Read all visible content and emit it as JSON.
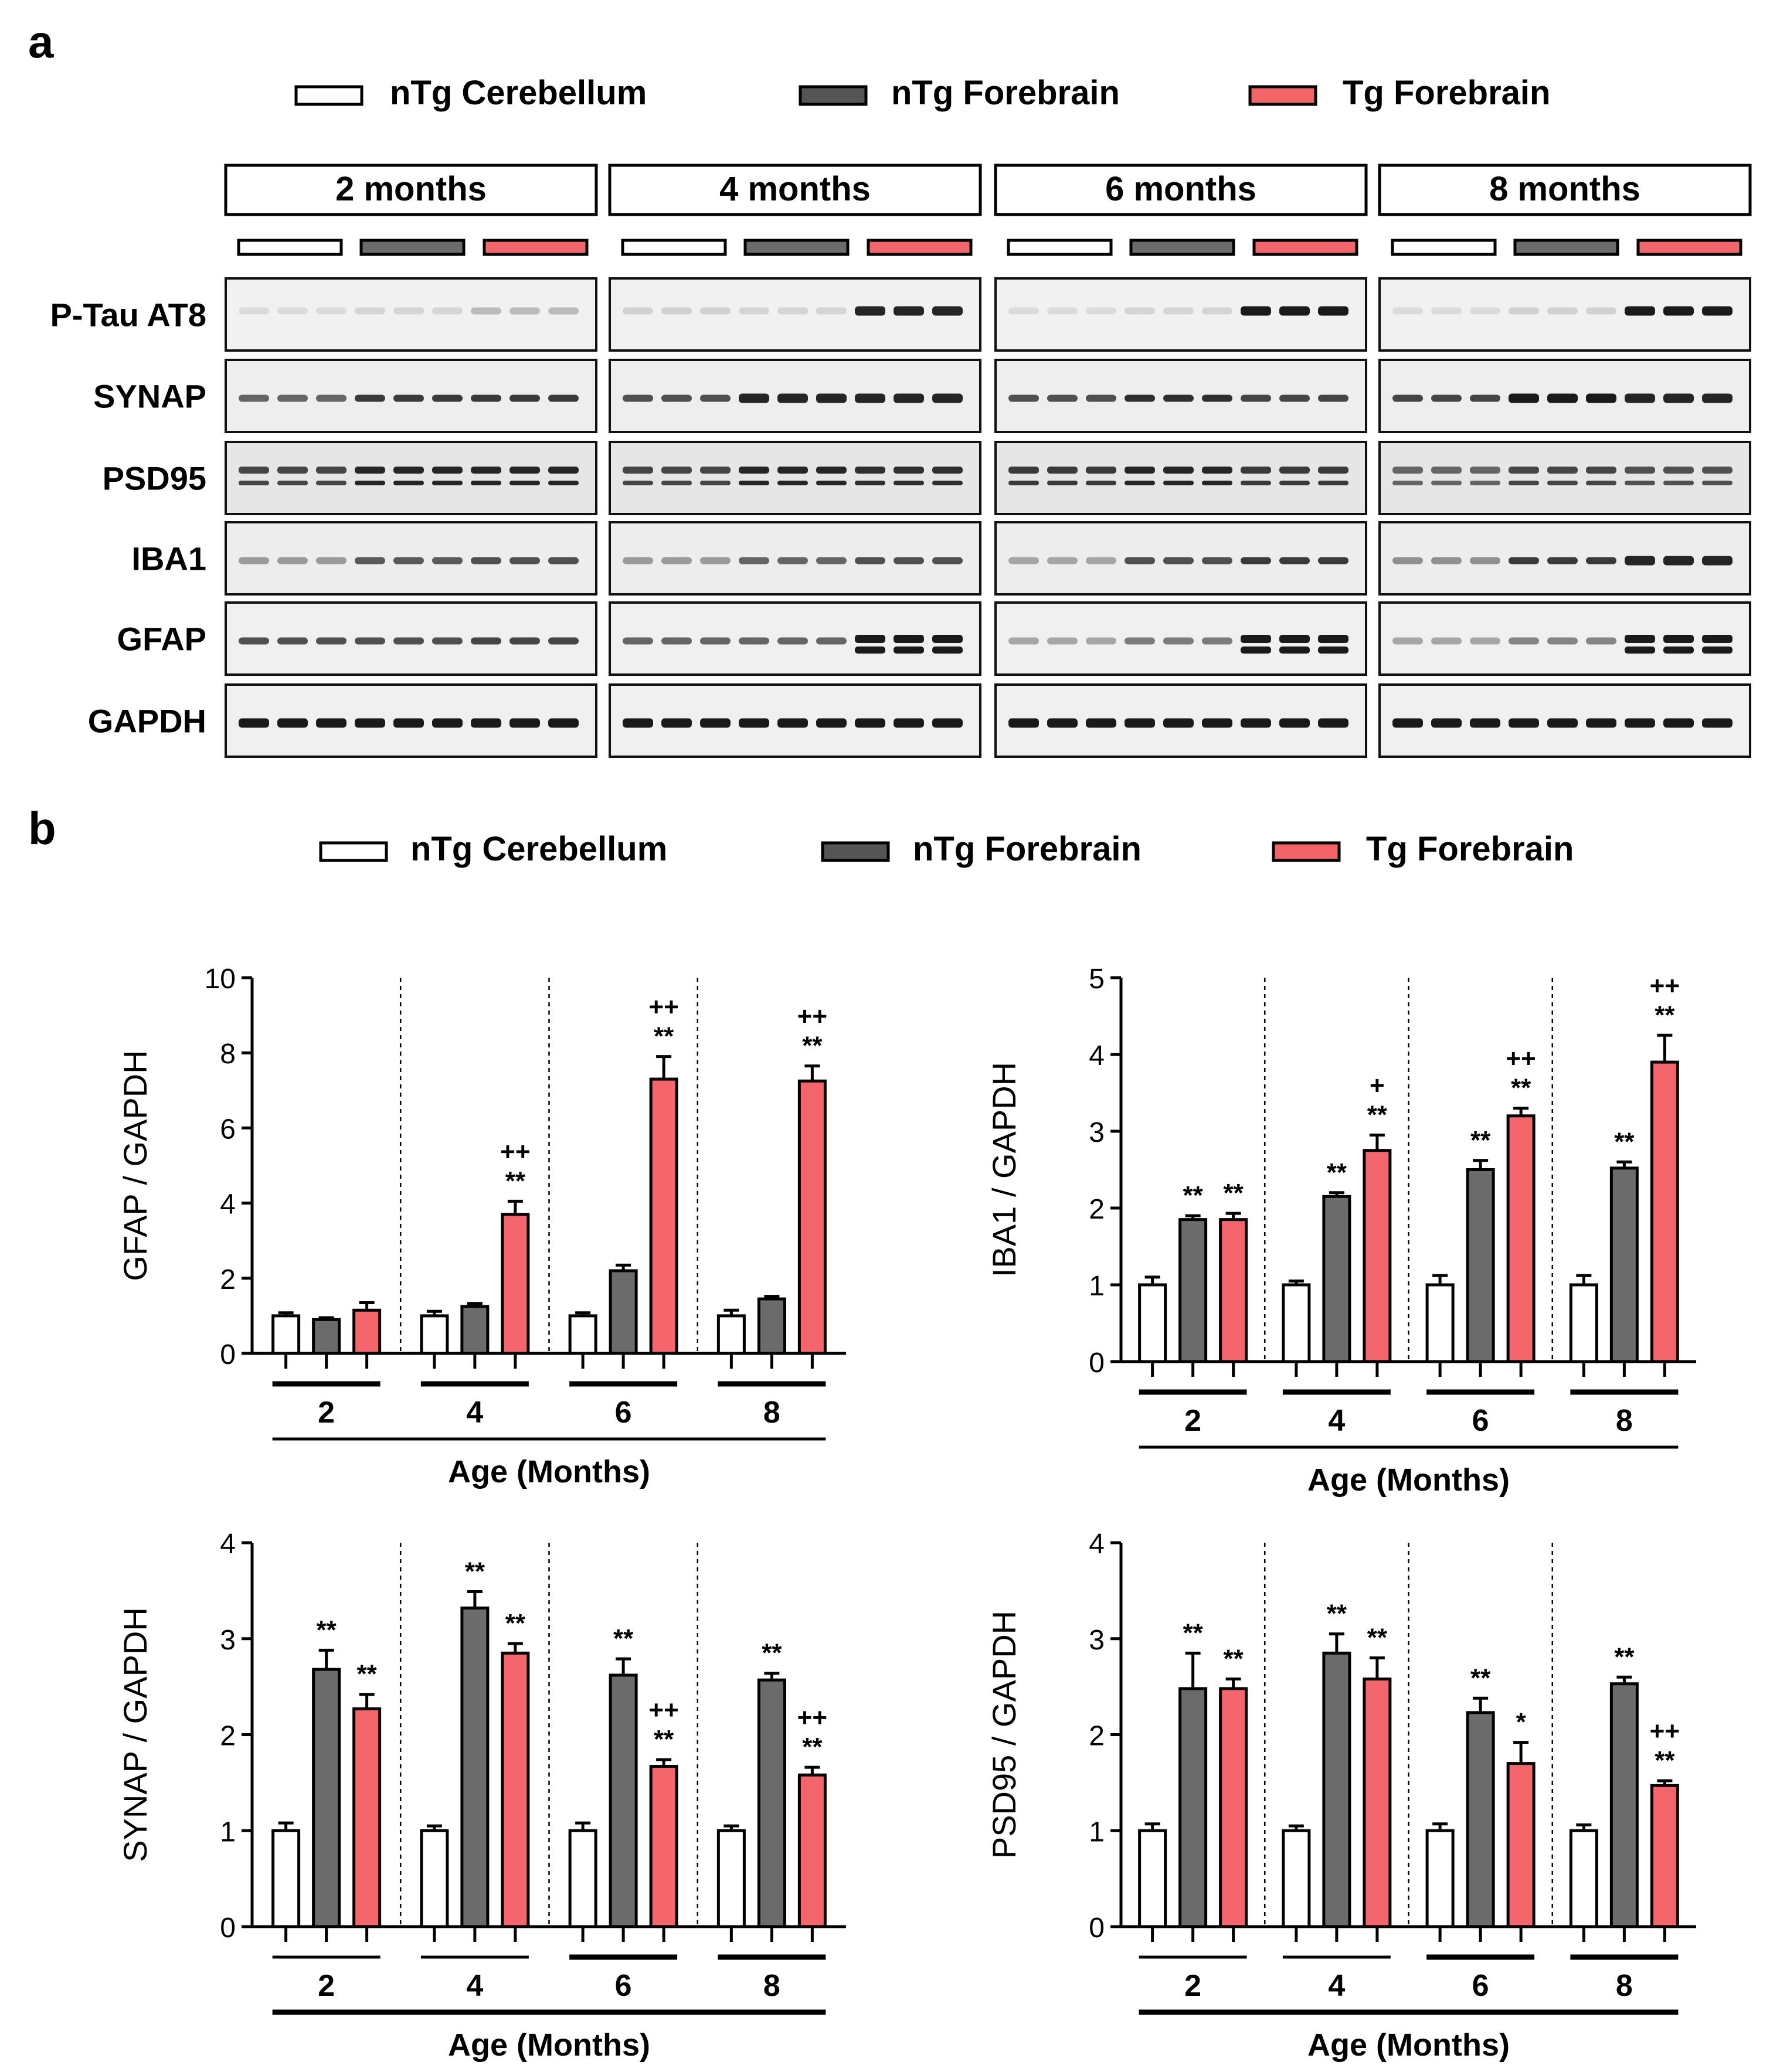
{
  "panel_a": {
    "letter": "a",
    "legend": [
      "nTg Cerebellum",
      "nTg Forebrain",
      "Tg Forebrain"
    ],
    "timepoints": [
      "2 months",
      "4 months",
      "6 months",
      "8 months"
    ],
    "proteins": [
      "P-Tau AT8",
      "SYNAP",
      "PSD95",
      "IBA1",
      "GFAP",
      "GAPDH"
    ]
  },
  "panel_b": {
    "letter": "b",
    "legend": [
      "nTg Cerebellum",
      "nTg Forebrain",
      "Tg Forebrain"
    ]
  },
  "colors": {
    "ntg_cerebellum": "#ffffff",
    "ntg_forebrain": "#6b6b6b",
    "tg_forebrain": "#f4666b",
    "legend_ntg_forebrain": "#555555",
    "legend_tg_forebrain": "#f26468"
  },
  "chart_data": [
    {
      "type": "bar",
      "id": "gfap",
      "ylabel": "GFAP / GAPDH",
      "xlabel": "Age (Months)",
      "categories": [
        "2",
        "4",
        "6",
        "8"
      ],
      "ylim": [
        0,
        10
      ],
      "yticks": [
        0,
        2,
        4,
        6,
        8,
        10
      ],
      "series": [
        {
          "name": "nTg Cerebellum",
          "values": [
            1.0,
            1.0,
            1.0,
            1.0
          ],
          "errors": [
            0.08,
            0.12,
            0.08,
            0.15
          ]
        },
        {
          "name": "nTg Forebrain",
          "values": [
            0.9,
            1.25,
            2.2,
            1.45
          ],
          "errors": [
            0.05,
            0.08,
            0.15,
            0.07
          ]
        },
        {
          "name": "Tg Forebrain",
          "values": [
            1.15,
            3.7,
            7.3,
            7.25
          ],
          "errors": [
            0.2,
            0.35,
            0.6,
            0.4
          ]
        }
      ],
      "annotations": [
        {
          "category": "4",
          "series": "Tg Forebrain",
          "lines": [
            "++",
            "**"
          ]
        },
        {
          "category": "6",
          "series": "Tg Forebrain",
          "lines": [
            "++",
            "**"
          ]
        },
        {
          "category": "8",
          "series": "Tg Forebrain",
          "lines": [
            "++",
            "**"
          ]
        }
      ]
    },
    {
      "type": "bar",
      "id": "iba1",
      "ylabel": "IBA1 / GAPDH",
      "xlabel": "Age (Months)",
      "categories": [
        "2",
        "4",
        "6",
        "8"
      ],
      "ylim": [
        0,
        5
      ],
      "yticks": [
        0,
        1,
        2,
        3,
        4,
        5
      ],
      "series": [
        {
          "name": "nTg Cerebellum",
          "values": [
            1.0,
            1.0,
            1.0,
            1.0
          ],
          "errors": [
            0.1,
            0.05,
            0.12,
            0.12
          ]
        },
        {
          "name": "nTg Forebrain",
          "values": [
            1.85,
            2.15,
            2.5,
            2.52
          ],
          "errors": [
            0.05,
            0.05,
            0.12,
            0.08
          ]
        },
        {
          "name": "Tg Forebrain",
          "values": [
            1.85,
            2.75,
            3.2,
            3.9
          ],
          "errors": [
            0.08,
            0.2,
            0.1,
            0.35
          ]
        }
      ],
      "annotations": [
        {
          "category": "2",
          "series": "nTg Forebrain",
          "lines": [
            "**"
          ]
        },
        {
          "category": "2",
          "series": "Tg Forebrain",
          "lines": [
            "**"
          ]
        },
        {
          "category": "4",
          "series": "nTg Forebrain",
          "lines": [
            "**"
          ]
        },
        {
          "category": "4",
          "series": "Tg Forebrain",
          "lines": [
            "+",
            "**"
          ]
        },
        {
          "category": "6",
          "series": "nTg Forebrain",
          "lines": [
            "**"
          ]
        },
        {
          "category": "6",
          "series": "Tg Forebrain",
          "lines": [
            "++",
            "**"
          ]
        },
        {
          "category": "8",
          "series": "nTg Forebrain",
          "lines": [
            "**"
          ]
        },
        {
          "category": "8",
          "series": "Tg Forebrain",
          "lines": [
            "++",
            "**"
          ]
        }
      ]
    },
    {
      "type": "bar",
      "id": "synap",
      "ylabel": "SYNAP / GAPDH",
      "xlabel": "Age (Months)",
      "categories": [
        "2",
        "4",
        "6",
        "8"
      ],
      "ylim": [
        0,
        4
      ],
      "yticks": [
        0,
        1,
        2,
        3,
        4
      ],
      "series": [
        {
          "name": "nTg Cerebellum",
          "values": [
            1.0,
            1.0,
            1.0,
            1.0
          ],
          "errors": [
            0.08,
            0.05,
            0.08,
            0.05
          ]
        },
        {
          "name": "nTg Forebrain",
          "values": [
            2.68,
            3.32,
            2.62,
            2.57
          ],
          "errors": [
            0.2,
            0.17,
            0.17,
            0.07
          ]
        },
        {
          "name": "Tg Forebrain",
          "values": [
            2.27,
            2.85,
            1.67,
            1.58
          ],
          "errors": [
            0.15,
            0.1,
            0.07,
            0.08
          ]
        }
      ],
      "annotations": [
        {
          "category": "2",
          "series": "nTg Forebrain",
          "lines": [
            "**"
          ]
        },
        {
          "category": "2",
          "series": "Tg Forebrain",
          "lines": [
            "**"
          ]
        },
        {
          "category": "4",
          "series": "nTg Forebrain",
          "lines": [
            "**"
          ]
        },
        {
          "category": "4",
          "series": "Tg Forebrain",
          "lines": [
            "**"
          ]
        },
        {
          "category": "6",
          "series": "nTg Forebrain",
          "lines": [
            "**"
          ]
        },
        {
          "category": "6",
          "series": "Tg Forebrain",
          "lines": [
            "++",
            "**"
          ]
        },
        {
          "category": "8",
          "series": "nTg Forebrain",
          "lines": [
            "**"
          ]
        },
        {
          "category": "8",
          "series": "Tg Forebrain",
          "lines": [
            "++",
            "**"
          ]
        }
      ]
    },
    {
      "type": "bar",
      "id": "psd95",
      "ylabel": "PSD95 / GAPDH",
      "xlabel": "Age (Months)",
      "categories": [
        "2",
        "4",
        "6",
        "8"
      ],
      "ylim": [
        0,
        4
      ],
      "yticks": [
        0,
        1,
        2,
        3,
        4
      ],
      "series": [
        {
          "name": "nTg Cerebellum",
          "values": [
            1.0,
            1.0,
            1.0,
            1.0
          ],
          "errors": [
            0.07,
            0.05,
            0.07,
            0.06
          ]
        },
        {
          "name": "nTg Forebrain",
          "values": [
            2.48,
            2.85,
            2.23,
            2.53
          ],
          "errors": [
            0.37,
            0.2,
            0.15,
            0.07
          ]
        },
        {
          "name": "Tg Forebrain",
          "values": [
            2.48,
            2.58,
            1.7,
            1.47
          ],
          "errors": [
            0.1,
            0.22,
            0.22,
            0.05
          ]
        }
      ],
      "annotations": [
        {
          "category": "2",
          "series": "nTg Forebrain",
          "lines": [
            "**"
          ]
        },
        {
          "category": "2",
          "series": "Tg Forebrain",
          "lines": [
            "**"
          ]
        },
        {
          "category": "4",
          "series": "nTg Forebrain",
          "lines": [
            "**"
          ]
        },
        {
          "category": "4",
          "series": "Tg Forebrain",
          "lines": [
            "**"
          ]
        },
        {
          "category": "6",
          "series": "nTg Forebrain",
          "lines": [
            "**"
          ]
        },
        {
          "category": "6",
          "series": "Tg Forebrain",
          "lines": [
            "*"
          ]
        },
        {
          "category": "8",
          "series": "nTg Forebrain",
          "lines": [
            "**"
          ]
        },
        {
          "category": "8",
          "series": "Tg Forebrain",
          "lines": [
            "++",
            "**"
          ]
        }
      ]
    }
  ]
}
